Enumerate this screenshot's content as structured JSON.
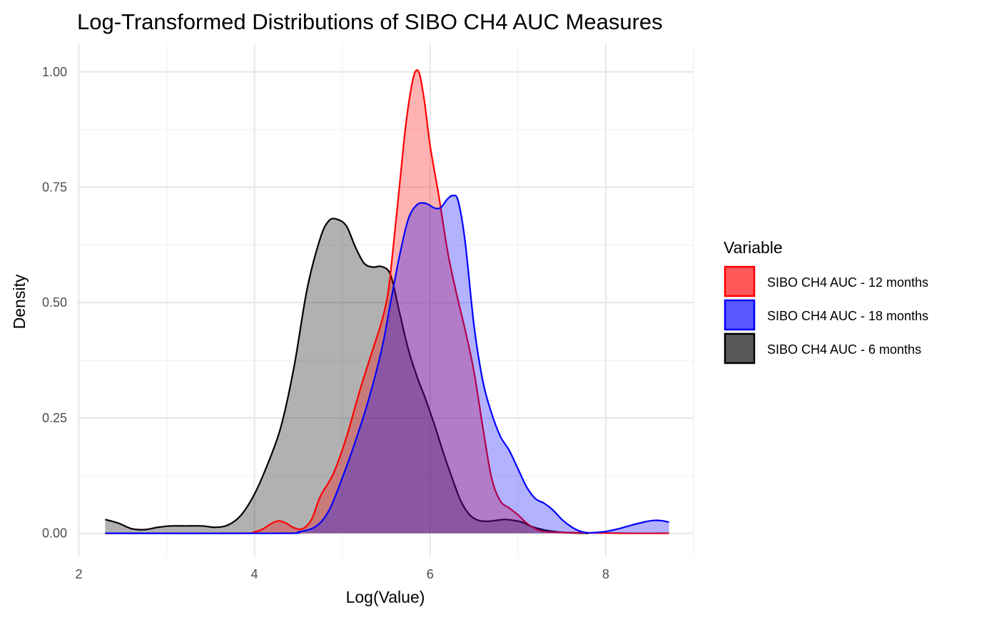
{
  "chart_data": {
    "type": "area",
    "title": "Log-Transformed Distributions of SIBO CH4 AUC Measures",
    "xlabel": "Log(Value)",
    "ylabel": "Density",
    "xlim": [
      1.98,
      9.0
    ],
    "ylim": [
      -0.05,
      1.06
    ],
    "x_ticks": [
      2,
      4,
      6,
      8
    ],
    "x_tick_labels": [
      "2",
      "4",
      "6",
      "8"
    ],
    "y_ticks": [
      0,
      0.25,
      0.5,
      0.75,
      1
    ],
    "y_tick_labels": [
      "0.00",
      "0.25",
      "0.50",
      "0.75",
      "1.00"
    ],
    "grid": true,
    "legend": {
      "title": "Variable",
      "position": "right"
    },
    "series": [
      {
        "name": "SIBO CH4 AUC - 6 months",
        "fill": "#333333",
        "fill_opacity": 0.38,
        "line_color": "#000000",
        "legend_fill": "#595959",
        "points": [
          [
            2.3,
            0.03
          ],
          [
            2.45,
            0.022
          ],
          [
            2.6,
            0.01
          ],
          [
            2.75,
            0.008
          ],
          [
            2.9,
            0.013
          ],
          [
            3.05,
            0.016
          ],
          [
            3.2,
            0.016
          ],
          [
            3.4,
            0.016
          ],
          [
            3.55,
            0.013
          ],
          [
            3.7,
            0.018
          ],
          [
            3.85,
            0.04
          ],
          [
            4.0,
            0.085
          ],
          [
            4.15,
            0.15
          ],
          [
            4.3,
            0.23
          ],
          [
            4.45,
            0.36
          ],
          [
            4.6,
            0.53
          ],
          [
            4.75,
            0.64
          ],
          [
            4.85,
            0.678
          ],
          [
            4.95,
            0.68
          ],
          [
            5.05,
            0.665
          ],
          [
            5.15,
            0.62
          ],
          [
            5.25,
            0.585
          ],
          [
            5.35,
            0.577
          ],
          [
            5.45,
            0.578
          ],
          [
            5.55,
            0.56
          ],
          [
            5.65,
            0.48
          ],
          [
            5.75,
            0.4
          ],
          [
            5.85,
            0.34
          ],
          [
            5.95,
            0.29
          ],
          [
            6.05,
            0.235
          ],
          [
            6.15,
            0.175
          ],
          [
            6.25,
            0.12
          ],
          [
            6.35,
            0.07
          ],
          [
            6.45,
            0.04
          ],
          [
            6.55,
            0.028
          ],
          [
            6.65,
            0.026
          ],
          [
            6.75,
            0.028
          ],
          [
            6.85,
            0.03
          ],
          [
            6.95,
            0.028
          ],
          [
            7.05,
            0.024
          ],
          [
            7.15,
            0.015
          ],
          [
            7.3,
            0.007
          ],
          [
            7.45,
            0.003
          ],
          [
            7.6,
            0.001
          ],
          [
            7.8,
            0
          ]
        ]
      },
      {
        "name": "SIBO CH4 AUC - 12 months",
        "fill": "#ff0000",
        "fill_opacity": 0.3,
        "line_color": "#ff0000",
        "legend_fill": "#ff5959",
        "points": [
          [
            2.3,
            0
          ],
          [
            3.8,
            0
          ],
          [
            4.0,
            0.003
          ],
          [
            4.1,
            0.01
          ],
          [
            4.2,
            0.022
          ],
          [
            4.28,
            0.027
          ],
          [
            4.36,
            0.022
          ],
          [
            4.45,
            0.012
          ],
          [
            4.55,
            0.01
          ],
          [
            4.65,
            0.03
          ],
          [
            4.75,
            0.08
          ],
          [
            4.9,
            0.13
          ],
          [
            5.05,
            0.21
          ],
          [
            5.2,
            0.31
          ],
          [
            5.35,
            0.4
          ],
          [
            5.45,
            0.46
          ],
          [
            5.52,
            0.52
          ],
          [
            5.58,
            0.62
          ],
          [
            5.65,
            0.75
          ],
          [
            5.72,
            0.88
          ],
          [
            5.78,
            0.96
          ],
          [
            5.83,
            1.0
          ],
          [
            5.88,
            0.995
          ],
          [
            5.94,
            0.93
          ],
          [
            6.0,
            0.84
          ],
          [
            6.1,
            0.73
          ],
          [
            6.2,
            0.61
          ],
          [
            6.3,
            0.52
          ],
          [
            6.4,
            0.44
          ],
          [
            6.5,
            0.35
          ],
          [
            6.6,
            0.23
          ],
          [
            6.7,
            0.12
          ],
          [
            6.8,
            0.07
          ],
          [
            6.9,
            0.055
          ],
          [
            7.0,
            0.04
          ],
          [
            7.1,
            0.022
          ],
          [
            7.2,
            0.01
          ],
          [
            7.3,
            0.004
          ],
          [
            7.5,
            0.002
          ],
          [
            7.8,
            0.001
          ],
          [
            8.2,
            0
          ],
          [
            8.72,
            0
          ]
        ]
      },
      {
        "name": "SIBO CH4 AUC - 18 months",
        "fill": "#0000ff",
        "fill_opacity": 0.3,
        "line_color": "#0000ff",
        "legend_fill": "#5959ff",
        "points": [
          [
            2.3,
            0
          ],
          [
            4.3,
            0
          ],
          [
            4.5,
            0.003
          ],
          [
            4.7,
            0.015
          ],
          [
            4.85,
            0.05
          ],
          [
            5.0,
            0.12
          ],
          [
            5.15,
            0.2
          ],
          [
            5.3,
            0.29
          ],
          [
            5.45,
            0.4
          ],
          [
            5.55,
            0.5
          ],
          [
            5.65,
            0.6
          ],
          [
            5.75,
            0.68
          ],
          [
            5.85,
            0.712
          ],
          [
            5.95,
            0.715
          ],
          [
            6.05,
            0.705
          ],
          [
            6.12,
            0.706
          ],
          [
            6.2,
            0.725
          ],
          [
            6.26,
            0.732
          ],
          [
            6.32,
            0.72
          ],
          [
            6.4,
            0.63
          ],
          [
            6.5,
            0.45
          ],
          [
            6.6,
            0.33
          ],
          [
            6.7,
            0.26
          ],
          [
            6.8,
            0.21
          ],
          [
            6.9,
            0.18
          ],
          [
            7.0,
            0.14
          ],
          [
            7.1,
            0.1
          ],
          [
            7.2,
            0.075
          ],
          [
            7.3,
            0.065
          ],
          [
            7.4,
            0.05
          ],
          [
            7.5,
            0.03
          ],
          [
            7.6,
            0.015
          ],
          [
            7.7,
            0.005
          ],
          [
            7.8,
            0.001
          ],
          [
            7.9,
            0.002
          ],
          [
            8.0,
            0.004
          ],
          [
            8.15,
            0.01
          ],
          [
            8.3,
            0.018
          ],
          [
            8.45,
            0.025
          ],
          [
            8.55,
            0.028
          ],
          [
            8.65,
            0.027
          ],
          [
            8.72,
            0.024
          ]
        ]
      }
    ],
    "legend_order": [
      "SIBO CH4 AUC - 12 months",
      "SIBO CH4 AUC - 18 months",
      "SIBO CH4 AUC - 6 months"
    ]
  }
}
